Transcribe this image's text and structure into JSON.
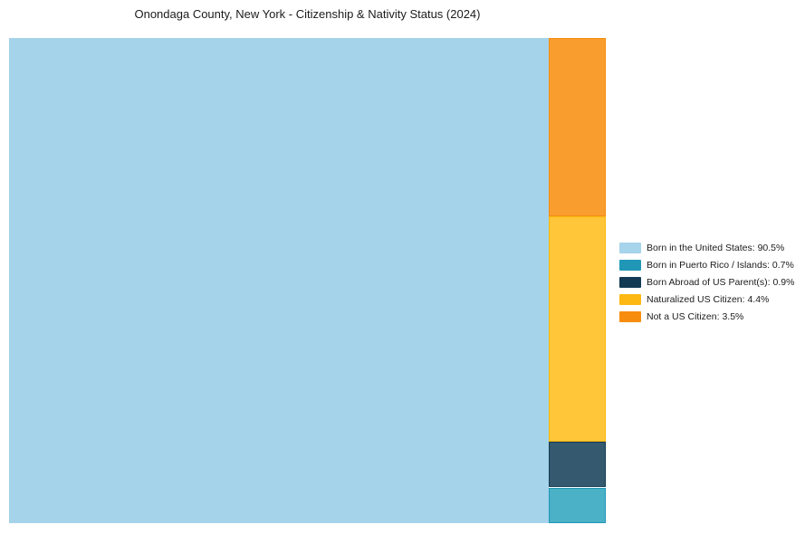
{
  "chart_data": {
    "type": "treemap",
    "title": "Onondaga County, New York - Citizenship & Nativity Status (2024)",
    "units": "percent",
    "legend_position": "right-center",
    "grid": false,
    "series": [
      {
        "name": "Born in the United States",
        "value": 90.5,
        "label": "Born in the United States: 90.5%",
        "fill": "#A5D3EA",
        "edge": "#A5D3EA",
        "legend_color": "#A5D4EB"
      },
      {
        "name": "Born in Puerto Rico / Islands",
        "value": 0.7,
        "label": "Born in Puerto Rico / Islands: 0.7%",
        "fill": "#4BB1C6",
        "edge": "#2097B6",
        "legend_color": "#2097B6"
      },
      {
        "name": "Born Abroad of US Parent(s)",
        "value": 0.9,
        "label": "Born Abroad of US Parent(s): 0.9%",
        "fill": "#35596E",
        "edge": "#123A52",
        "legend_color": "#123A52"
      },
      {
        "name": "Naturalized US Citizen",
        "value": 4.4,
        "label": "Naturalized US Citizen: 4.4%",
        "fill": "#FEC638",
        "edge": "#FDB813",
        "legend_color": "#FDB813"
      },
      {
        "name": "Not a US Citizen",
        "value": 3.5,
        "label": "Not a US Citizen: 3.5%",
        "fill": "#F99D2F",
        "edge": "#F78D0E",
        "legend_color": "#F78D0E"
      }
    ],
    "layout": {
      "main_tile": "Born in the United States",
      "right_column_top_to_bottom": [
        "Not a US Citizen",
        "Naturalized US Citizen",
        "Born Abroad of US Parent(s)",
        "Born in Puerto Rico / Islands"
      ]
    }
  }
}
